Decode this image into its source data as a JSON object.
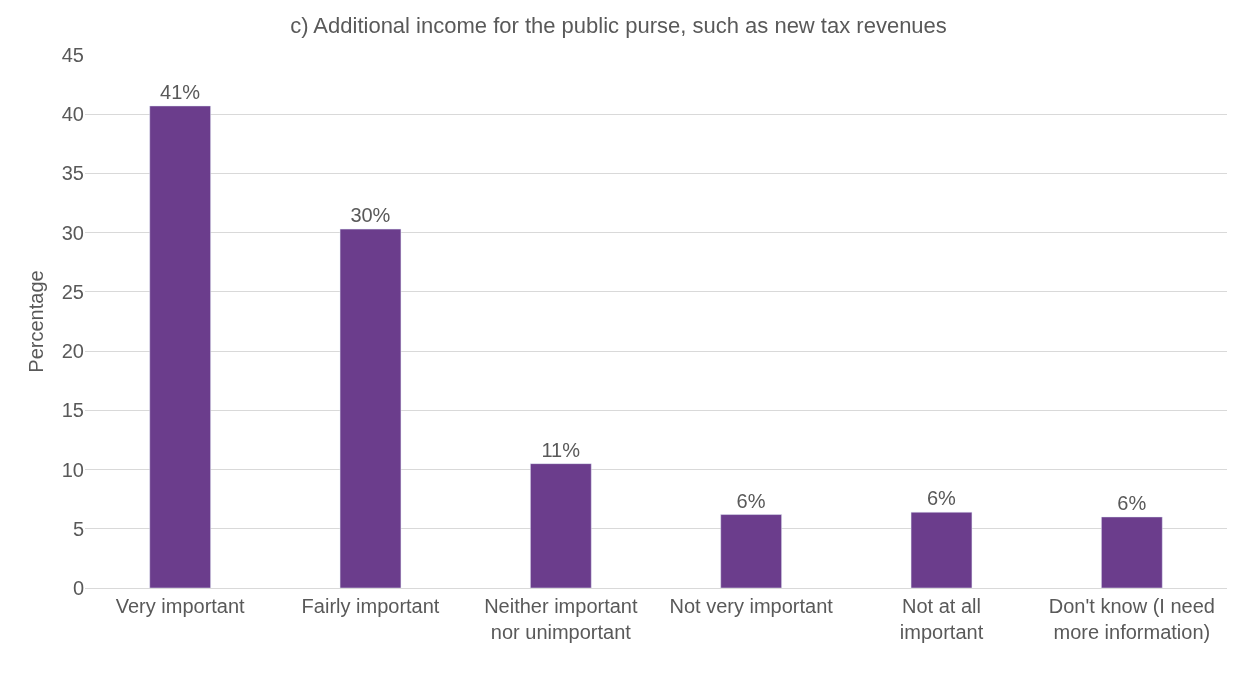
{
  "chart_data": {
    "type": "bar",
    "title": "c) Additional income for the public purse, such as new tax revenues",
    "ylabel": "Percentage",
    "categories": [
      "Very important",
      "Fairly important",
      "Neither important nor unimportant",
      "Not very important",
      "Not at all important",
      "Don't know (I need more information)"
    ],
    "values": [
      40.7,
      30.3,
      10.5,
      6.2,
      6.4,
      6.0
    ],
    "value_labels": [
      "41%",
      "30%",
      "11%",
      "6%",
      "6%",
      "6%"
    ],
    "color": "#6b3d8c",
    "ylim": [
      0,
      45
    ],
    "yticks": [
      0,
      5,
      10,
      15,
      20,
      25,
      30,
      35,
      40,
      45
    ],
    "grid": "y"
  }
}
